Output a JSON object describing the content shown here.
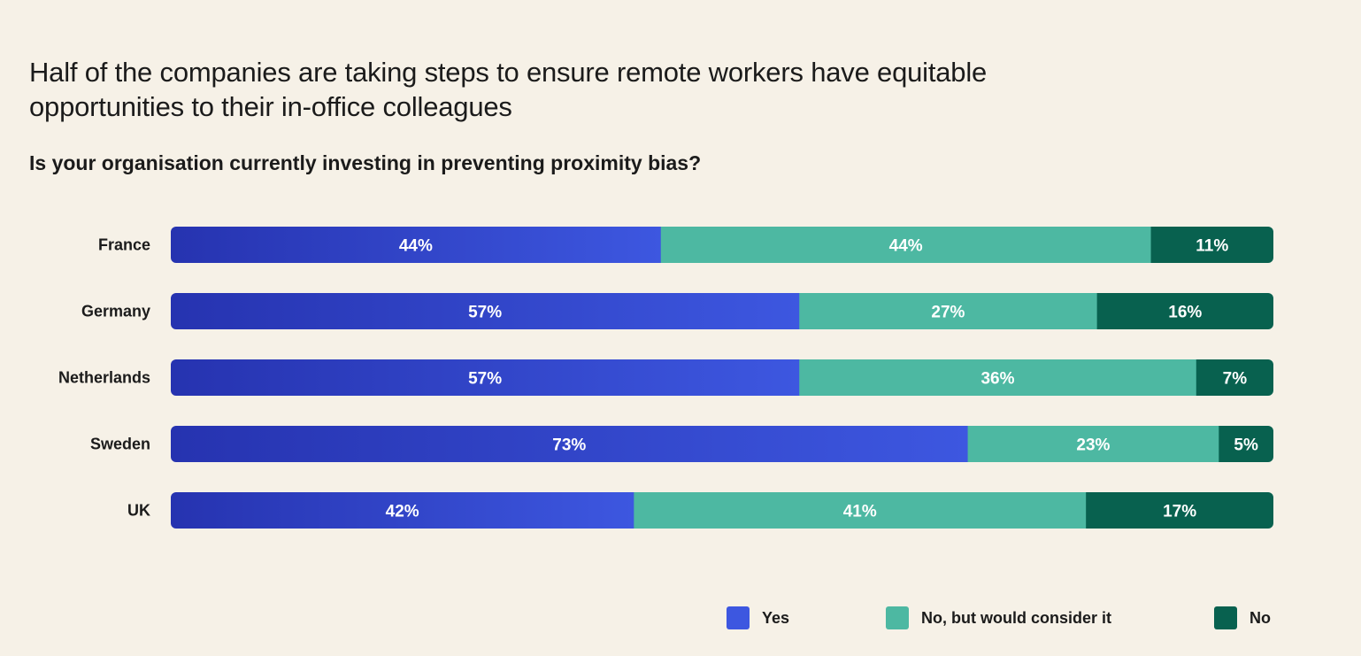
{
  "chart_data": {
    "type": "bar",
    "orientation": "horizontal",
    "stacked": true,
    "title": "Half of the companies are taking steps to ensure remote workers have equitable opportunities to their in-office colleagues",
    "subtitle": "Is your organisation currently investing in preventing proximity bias?",
    "categories": [
      "France",
      "Germany",
      "Netherlands",
      "Sweden",
      "UK"
    ],
    "series": [
      {
        "name": "Yes",
        "values": [
          44,
          57,
          57,
          73,
          42
        ],
        "color": "#3d57e0",
        "color_start": "#2633b0"
      },
      {
        "name": "No, but would consider it",
        "values": [
          44,
          27,
          36,
          23,
          41
        ],
        "color": "#4db8a2"
      },
      {
        "name": "No",
        "values": [
          11,
          16,
          7,
          5,
          17
        ],
        "color": "#08614f"
      }
    ],
    "value_suffix": "%",
    "legend_position": "bottom-right",
    "grid": false
  }
}
